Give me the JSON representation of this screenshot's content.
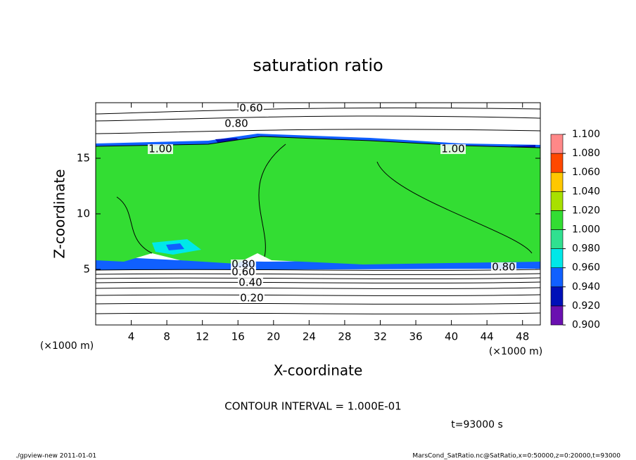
{
  "chart_data": {
    "type": "contour",
    "title": "saturation ratio",
    "x_label": "X-coordinate",
    "y_label": "Z-coordinate",
    "x_unit": "(×1000 m)",
    "y_unit": "(×1000 m)",
    "xlim": [
      0,
      50
    ],
    "ylim": [
      0,
      20
    ],
    "xticks": [
      4,
      8,
      12,
      16,
      20,
      24,
      28,
      32,
      36,
      40,
      44,
      48
    ],
    "yticks": [
      5,
      10,
      15
    ],
    "colorbar": {
      "levels": [
        {
          "value": 0.9,
          "label": "0.900"
        },
        {
          "value": 0.92,
          "label": "0.920"
        },
        {
          "value": 0.94,
          "label": "0.940"
        },
        {
          "value": 0.96,
          "label": "0.960"
        },
        {
          "value": 0.98,
          "label": "0.980"
        },
        {
          "value": 1.0,
          "label": "1.000"
        },
        {
          "value": 1.02,
          "label": "1.020"
        },
        {
          "value": 1.04,
          "label": "1.040"
        },
        {
          "value": 1.06,
          "label": "1.060"
        },
        {
          "value": 1.08,
          "label": "1.080"
        },
        {
          "value": 1.1,
          "label": "1.100"
        }
      ],
      "colors": [
        "#6a10b0",
        "#0010b8",
        "#1060ff",
        "#00e8e8",
        "#30e090",
        "#33dd33",
        "#a8e000",
        "#ffc800",
        "#ff4800",
        "#ff8888"
      ]
    },
    "contour_labels": [
      {
        "value": 0.6,
        "label": "0.60"
      },
      {
        "value": 0.8,
        "label": "0.80"
      },
      {
        "value": 1.0,
        "label": "1.00"
      },
      {
        "value": 1.0,
        "label": "1.00"
      },
      {
        "value": 0.8,
        "label": "0.80"
      },
      {
        "value": 0.6,
        "label": "0.60"
      },
      {
        "value": 0.4,
        "label": "0.40"
      },
      {
        "value": 0.2,
        "label": "0.20"
      },
      {
        "value": 0.8,
        "label": "0.80"
      }
    ],
    "contour_interval": "CONTOUR INTERVAL = 1.000E-01",
    "time": "t=93000 s",
    "footer_left": "./gpview-new  2011-01-01",
    "footer_right": "MarsCond_SatRatio.nc@SatRatio,x=0:50000,z=0:20000,t=93000"
  }
}
